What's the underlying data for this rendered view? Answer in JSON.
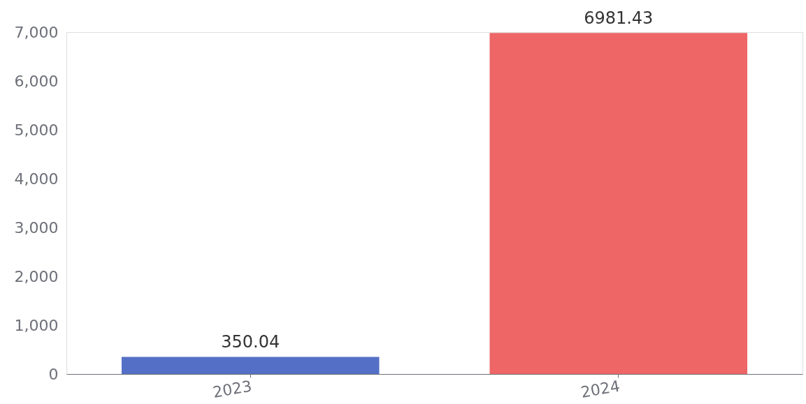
{
  "chart_data": {
    "type": "bar",
    "categories": [
      "2023",
      "2024"
    ],
    "values": [
      350.04,
      6981.43
    ],
    "colors": [
      "#5470c6",
      "#ee6666"
    ],
    "ylim": [
      0,
      7000
    ],
    "yticks": [
      0,
      {
        "value": 1000,
        "label": "1,000"
      },
      {
        "value": 2000,
        "label": "2,000"
      },
      {
        "value": 3000,
        "label": "3,000"
      },
      {
        "value": 4000,
        "label": "4,000"
      },
      {
        "value": 5000,
        "label": "5,000"
      },
      {
        "value": 6000,
        "label": "6,000"
      },
      {
        "value": 7000,
        "label": "7,000"
      }
    ],
    "data_labels": true
  }
}
